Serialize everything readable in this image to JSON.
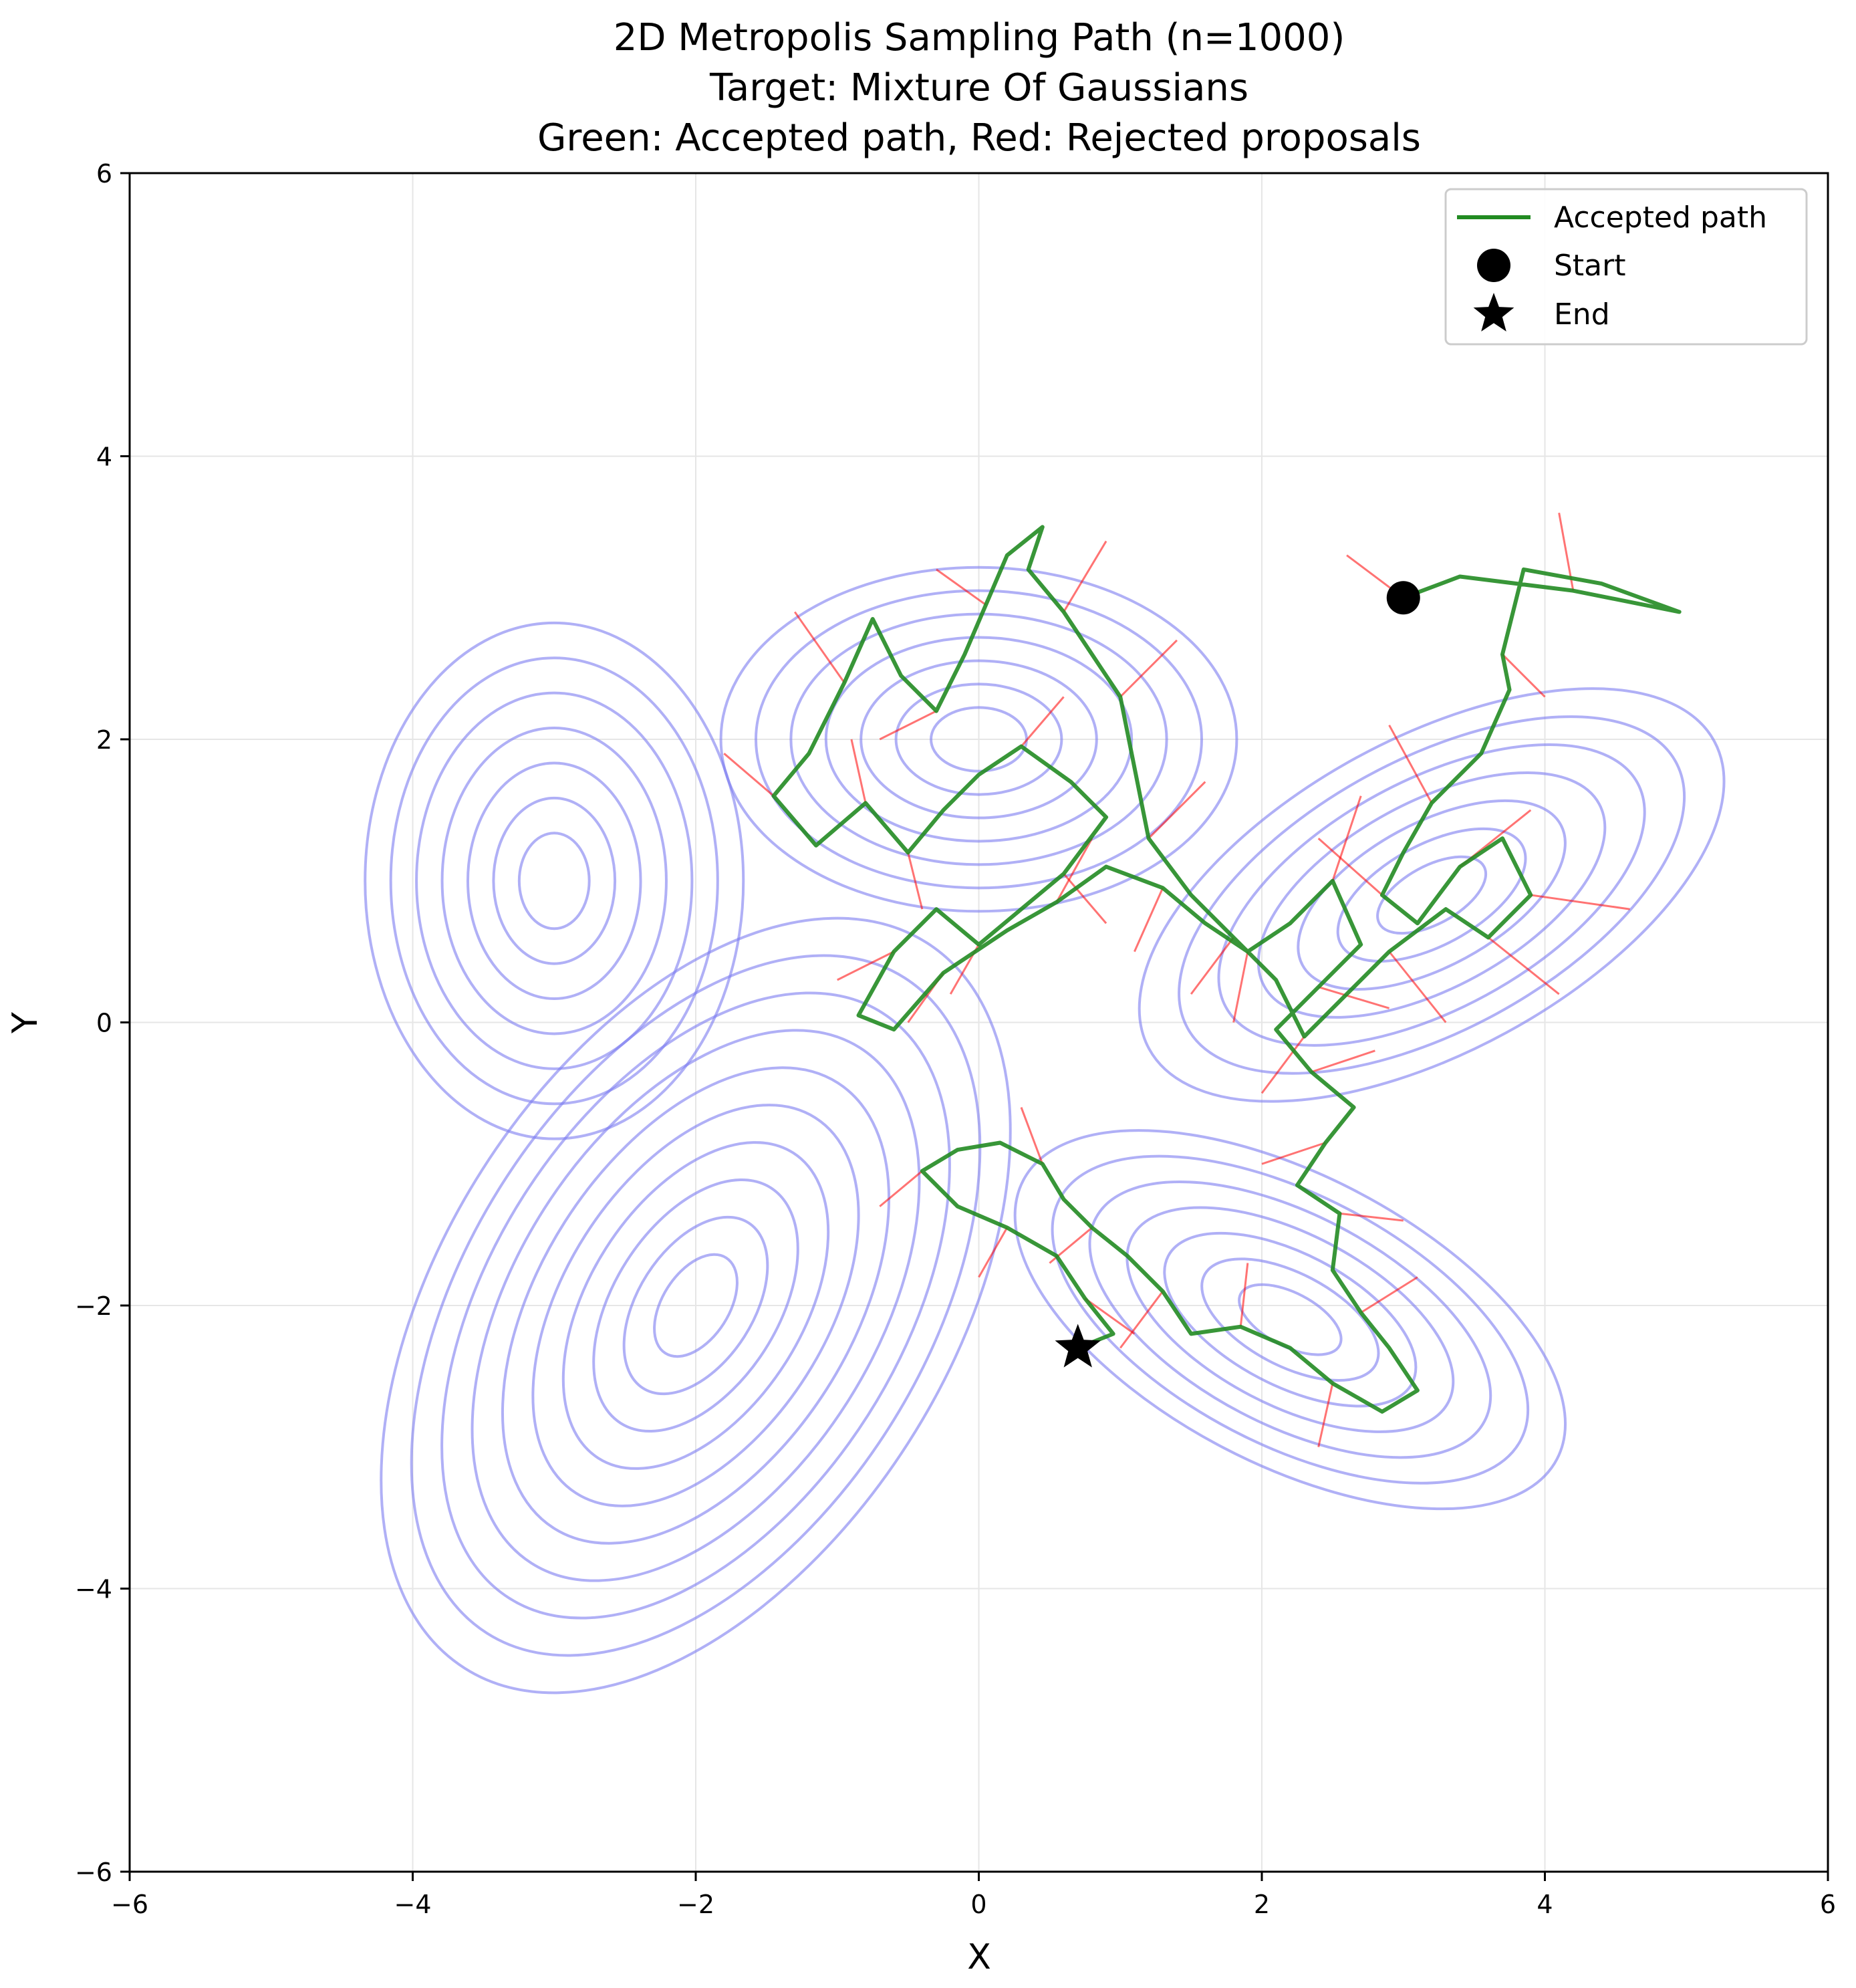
{
  "chart_data": {
    "type": "line",
    "title_lines": [
      "2D Metropolis Sampling Path (n=1000)",
      "Target: Mixture Of Gaussians",
      "Green: Accepted path, Red: Rejected proposals"
    ],
    "xlabel": "X",
    "ylabel": "Y",
    "xlim": [
      -6,
      6
    ],
    "ylim": [
      -6,
      6
    ],
    "xticks": [
      -6,
      -4,
      -2,
      0,
      2,
      4,
      6
    ],
    "yticks": [
      -6,
      -4,
      -2,
      0,
      2,
      4,
      6
    ],
    "xtick_labels": [
      "−6",
      "−4",
      "−2",
      "0",
      "2",
      "4",
      "6"
    ],
    "ytick_labels": [
      "−6",
      "−4",
      "−2",
      "0",
      "2",
      "4",
      "6"
    ],
    "grid": true,
    "legend": {
      "placement": "top-right",
      "entries": [
        "Accepted path",
        "Start",
        "End"
      ]
    },
    "colors": {
      "accepted": "#228b22",
      "rejected": "#ff0000",
      "contour": "#7b7bf0",
      "marker": "#000000"
    },
    "start": [
      3.0,
      3.0
    ],
    "end": [
      0.7,
      -2.3
    ],
    "target_components": [
      {
        "mean": [
          -3.0,
          1.0
        ],
        "sd": [
          0.55,
          0.75
        ],
        "corr": 0.0,
        "levels": 7
      },
      {
        "mean": [
          0.0,
          2.0
        ],
        "sd": [
          0.75,
          0.5
        ],
        "corr": 0.0,
        "levels": 7
      },
      {
        "mean": [
          -2.0,
          -2.0
        ],
        "sd": [
          0.65,
          0.8
        ],
        "corr": 0.45,
        "levels": 10
      },
      {
        "mean": [
          2.2,
          -2.1
        ],
        "sd": [
          0.8,
          0.55
        ],
        "corr": -0.55,
        "levels": 7
      },
      {
        "mean": [
          3.2,
          0.9
        ],
        "sd": [
          0.85,
          0.6
        ],
        "corr": 0.55,
        "levels": 7
      }
    ],
    "accepted_path": [
      [
        3.0,
        3.0
      ],
      [
        3.4,
        3.15
      ],
      [
        4.2,
        3.05
      ],
      [
        4.95,
        2.9
      ],
      [
        4.4,
        3.1
      ],
      [
        3.85,
        3.2
      ],
      [
        3.7,
        2.6
      ],
      [
        3.75,
        2.35
      ],
      [
        3.55,
        1.9
      ],
      [
        3.2,
        1.55
      ],
      [
        3.0,
        1.2
      ],
      [
        2.85,
        0.9
      ],
      [
        3.1,
        0.7
      ],
      [
        3.4,
        1.1
      ],
      [
        3.7,
        1.3
      ],
      [
        3.9,
        0.9
      ],
      [
        3.6,
        0.6
      ],
      [
        3.3,
        0.8
      ],
      [
        2.9,
        0.5
      ],
      [
        2.6,
        0.2
      ],
      [
        2.3,
        -0.1
      ],
      [
        2.1,
        0.3
      ],
      [
        1.8,
        0.6
      ],
      [
        1.5,
        0.9
      ],
      [
        1.2,
        1.3
      ],
      [
        1.1,
        1.8
      ],
      [
        1.0,
        2.3
      ],
      [
        0.8,
        2.6
      ],
      [
        0.6,
        2.9
      ],
      [
        0.35,
        3.2
      ],
      [
        0.45,
        3.5
      ],
      [
        0.2,
        3.3
      ],
      [
        0.05,
        2.95
      ],
      [
        -0.1,
        2.6
      ],
      [
        -0.3,
        2.2
      ],
      [
        -0.55,
        2.45
      ],
      [
        -0.75,
        2.85
      ],
      [
        -0.95,
        2.4
      ],
      [
        -1.2,
        1.9
      ],
      [
        -1.45,
        1.6
      ],
      [
        -1.15,
        1.25
      ],
      [
        -0.8,
        1.55
      ],
      [
        -0.5,
        1.2
      ],
      [
        -0.25,
        1.5
      ],
      [
        0.0,
        1.75
      ],
      [
        0.3,
        1.95
      ],
      [
        0.65,
        1.7
      ],
      [
        0.9,
        1.45
      ],
      [
        0.6,
        1.05
      ],
      [
        0.3,
        0.8
      ],
      [
        0.0,
        0.55
      ],
      [
        -0.3,
        0.8
      ],
      [
        -0.6,
        0.5
      ],
      [
        -0.85,
        0.05
      ],
      [
        -0.6,
        -0.05
      ],
      [
        -0.25,
        0.35
      ],
      [
        0.2,
        0.65
      ],
      [
        0.55,
        0.85
      ],
      [
        0.9,
        1.1
      ],
      [
        1.3,
        0.95
      ],
      [
        1.6,
        0.7
      ],
      [
        1.9,
        0.5
      ],
      [
        2.2,
        0.7
      ],
      [
        2.5,
        1.0
      ],
      [
        2.7,
        0.55
      ],
      [
        2.4,
        0.25
      ],
      [
        2.1,
        -0.05
      ],
      [
        2.35,
        -0.35
      ],
      [
        2.65,
        -0.6
      ],
      [
        2.45,
        -0.85
      ],
      [
        2.25,
        -1.15
      ],
      [
        2.55,
        -1.35
      ],
      [
        2.5,
        -1.75
      ],
      [
        2.7,
        -2.05
      ],
      [
        2.9,
        -2.3
      ],
      [
        3.1,
        -2.6
      ],
      [
        2.85,
        -2.75
      ],
      [
        2.5,
        -2.55
      ],
      [
        2.2,
        -2.3
      ],
      [
        1.85,
        -2.15
      ],
      [
        1.5,
        -2.2
      ],
      [
        1.3,
        -1.9
      ],
      [
        1.05,
        -1.65
      ],
      [
        0.8,
        -1.45
      ],
      [
        0.6,
        -1.25
      ],
      [
        0.45,
        -1.0
      ],
      [
        0.15,
        -0.85
      ],
      [
        -0.15,
        -0.9
      ],
      [
        -0.4,
        -1.05
      ],
      [
        -0.15,
        -1.3
      ],
      [
        0.2,
        -1.45
      ],
      [
        0.55,
        -1.65
      ],
      [
        0.75,
        -1.95
      ],
      [
        0.95,
        -2.2
      ],
      [
        0.7,
        -2.3
      ]
    ],
    "rejected_proposals": [
      [
        [
          3.0,
          3.0
        ],
        [
          2.6,
          3.3
        ]
      ],
      [
        [
          4.2,
          3.05
        ],
        [
          4.1,
          3.6
        ]
      ],
      [
        [
          3.7,
          2.6
        ],
        [
          4.0,
          2.3
        ]
      ],
      [
        [
          3.2,
          1.55
        ],
        [
          2.9,
          2.1
        ]
      ],
      [
        [
          2.85,
          0.9
        ],
        [
          2.4,
          1.3
        ]
      ],
      [
        [
          3.4,
          1.1
        ],
        [
          3.9,
          1.5
        ]
      ],
      [
        [
          3.9,
          0.9
        ],
        [
          4.6,
          0.8
        ]
      ],
      [
        [
          3.6,
          0.6
        ],
        [
          4.1,
          0.2
        ]
      ],
      [
        [
          2.9,
          0.5
        ],
        [
          3.3,
          0.0
        ]
      ],
      [
        [
          2.3,
          -0.1
        ],
        [
          2.0,
          -0.5
        ]
      ],
      [
        [
          1.8,
          0.6
        ],
        [
          1.5,
          0.2
        ]
      ],
      [
        [
          1.2,
          1.3
        ],
        [
          1.6,
          1.7
        ]
      ],
      [
        [
          1.0,
          2.3
        ],
        [
          1.4,
          2.7
        ]
      ],
      [
        [
          0.6,
          2.9
        ],
        [
          0.9,
          3.4
        ]
      ],
      [
        [
          0.05,
          2.95
        ],
        [
          -0.3,
          3.2
        ]
      ],
      [
        [
          -0.3,
          2.2
        ],
        [
          -0.7,
          2.0
        ]
      ],
      [
        [
          -0.95,
          2.4
        ],
        [
          -1.3,
          2.9
        ]
      ],
      [
        [
          -1.45,
          1.6
        ],
        [
          -1.8,
          1.9
        ]
      ],
      [
        [
          -0.8,
          1.55
        ],
        [
          -0.9,
          2.0
        ]
      ],
      [
        [
          -0.5,
          1.2
        ],
        [
          -0.4,
          0.8
        ]
      ],
      [
        [
          0.3,
          1.95
        ],
        [
          0.6,
          2.3
        ]
      ],
      [
        [
          0.6,
          1.05
        ],
        [
          0.9,
          0.7
        ]
      ],
      [
        [
          0.0,
          0.55
        ],
        [
          -0.2,
          0.2
        ]
      ],
      [
        [
          -0.6,
          0.5
        ],
        [
          -1.0,
          0.3
        ]
      ],
      [
        [
          -0.25,
          0.35
        ],
        [
          -0.5,
          0.0
        ]
      ],
      [
        [
          0.55,
          0.85
        ],
        [
          0.8,
          1.3
        ]
      ],
      [
        [
          1.3,
          0.95
        ],
        [
          1.1,
          0.5
        ]
      ],
      [
        [
          1.9,
          0.5
        ],
        [
          1.8,
          0.0
        ]
      ],
      [
        [
          2.5,
          1.0
        ],
        [
          2.7,
          1.6
        ]
      ],
      [
        [
          2.4,
          0.25
        ],
        [
          2.9,
          0.1
        ]
      ],
      [
        [
          2.35,
          -0.35
        ],
        [
          2.8,
          -0.2
        ]
      ],
      [
        [
          2.45,
          -0.85
        ],
        [
          2.0,
          -1.0
        ]
      ],
      [
        [
          2.55,
          -1.35
        ],
        [
          3.0,
          -1.4
        ]
      ],
      [
        [
          2.7,
          -2.05
        ],
        [
          3.1,
          -1.8
        ]
      ],
      [
        [
          2.5,
          -2.55
        ],
        [
          2.4,
          -3.0
        ]
      ],
      [
        [
          1.85,
          -2.15
        ],
        [
          1.9,
          -1.7
        ]
      ],
      [
        [
          1.3,
          -1.9
        ],
        [
          1.0,
          -2.3
        ]
      ],
      [
        [
          0.8,
          -1.45
        ],
        [
          0.5,
          -1.7
        ]
      ],
      [
        [
          0.45,
          -1.0
        ],
        [
          0.3,
          -0.6
        ]
      ],
      [
        [
          -0.4,
          -1.05
        ],
        [
          -0.7,
          -1.3
        ]
      ],
      [
        [
          0.2,
          -1.45
        ],
        [
          0.0,
          -1.8
        ]
      ],
      [
        [
          0.75,
          -1.95
        ],
        [
          1.1,
          -2.2
        ]
      ]
    ]
  }
}
